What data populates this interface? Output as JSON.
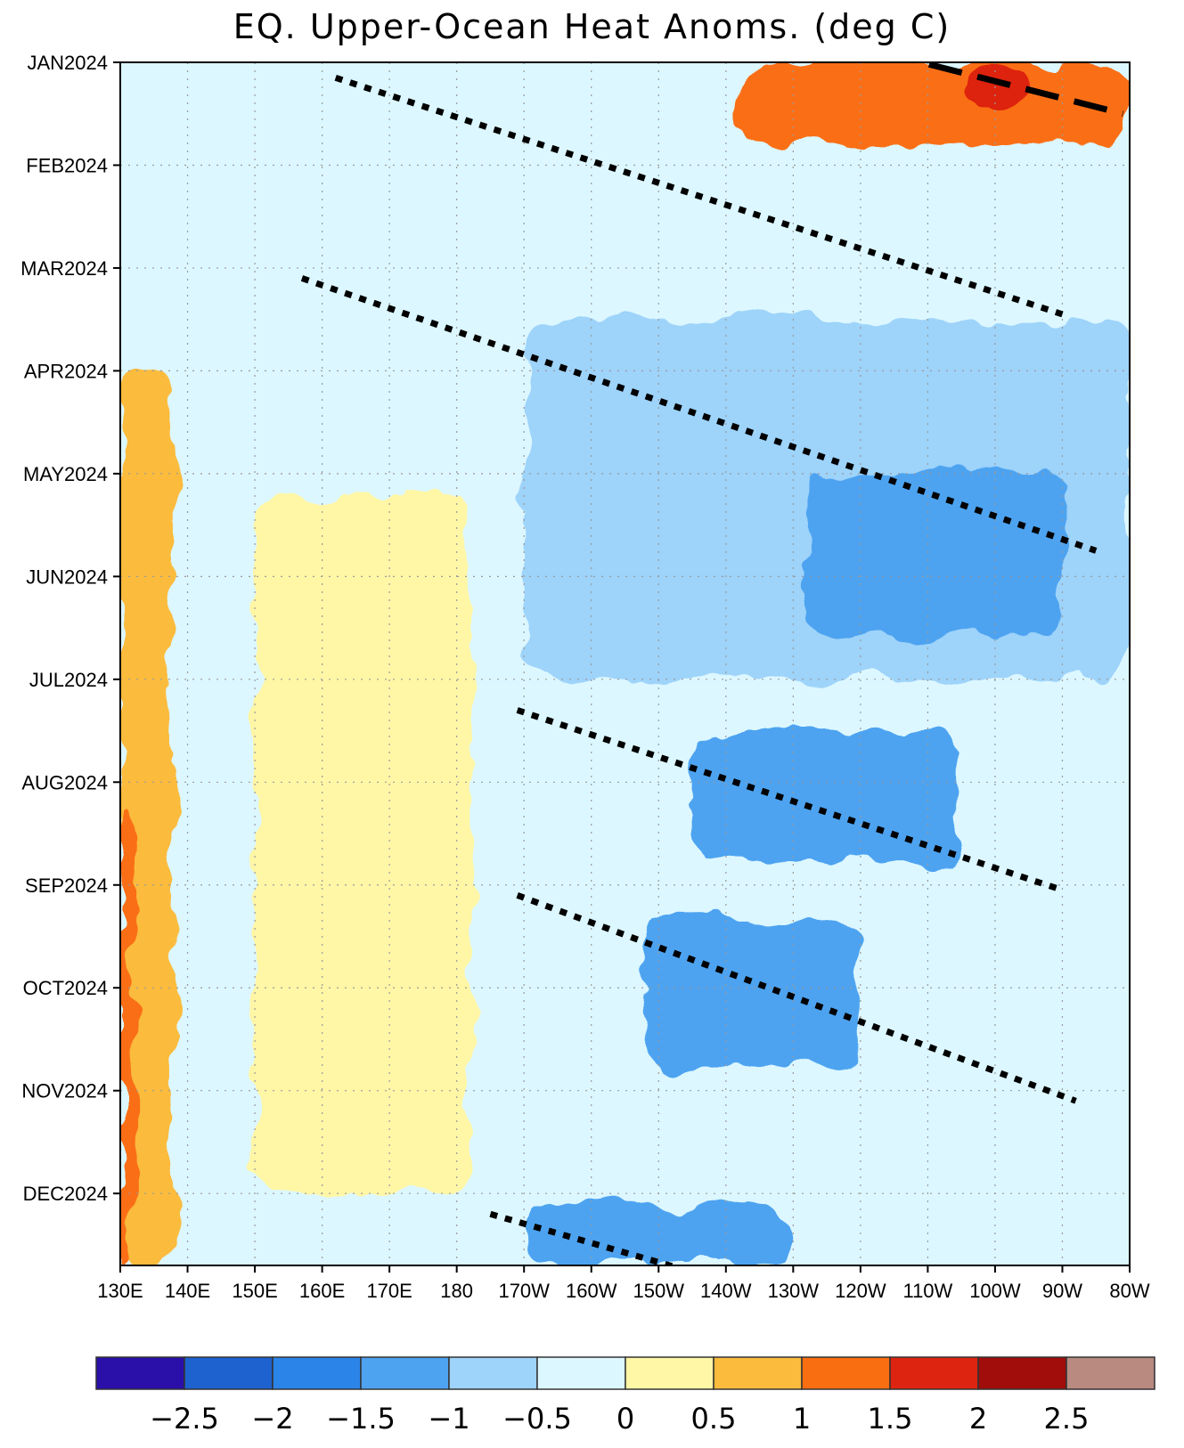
{
  "chart_data": {
    "type": "heatmap",
    "title": "EQ. Upper-Ocean Heat Anoms. (deg C)",
    "x_tick_labels": [
      "130E",
      "140E",
      "150E",
      "160E",
      "170E",
      "180",
      "170W",
      "160W",
      "150W",
      "140W",
      "130W",
      "120W",
      "110W",
      "100W",
      "90W",
      "80W"
    ],
    "x_longitudes_east": [
      130,
      140,
      150,
      160,
      170,
      180,
      190,
      200,
      210,
      220,
      230,
      240,
      250,
      260,
      270,
      280
    ],
    "y_tick_labels": [
      "JAN2024",
      "FEB2024",
      "MAR2024",
      "APR2024",
      "MAY2024",
      "JUN2024",
      "JUL2024",
      "AUG2024",
      "SEP2024",
      "OCT2024",
      "NOV2024",
      "DEC2024"
    ],
    "y_month_index": [
      0,
      1,
      2,
      3,
      4,
      5,
      6,
      7,
      8,
      9,
      10,
      11
    ],
    "y_range_months": [
      0,
      11.7
    ],
    "x_range_east": [
      130,
      280
    ],
    "grid": true,
    "colorbar": {
      "labels": [
        "-2.5",
        "-2",
        "-1.5",
        "-1",
        "-0.5",
        "0",
        "0.5",
        "1",
        "1.5",
        "2",
        "2.5"
      ],
      "colors": [
        "#2a0fa8",
        "#1d62cf",
        "#2b84e8",
        "#4ea3f0",
        "#9ed3fa",
        "#dcf7ff",
        "#fff6a6",
        "#fbbb3c",
        "#fa6e12",
        "#dd2410",
        "#a00d0a",
        "#b88a80"
      ]
    },
    "contour_levels": [
      -2.5,
      -2,
      -1.5,
      -1,
      -0.5,
      0,
      0.5,
      1,
      1.5,
      2,
      2.5
    ],
    "anomaly_regions": [
      {
        "name": "west-warm-strip",
        "value": 0.75,
        "lon": [
          130,
          138
        ],
        "months": [
          3,
          11.7
        ]
      },
      {
        "name": "west-warm-edge",
        "value": 1.25,
        "lon": [
          130,
          132
        ],
        "months": [
          7.3,
          11.7
        ]
      },
      {
        "name": "dateline-warm",
        "value": 0.25,
        "lon": [
          150,
          182
        ],
        "months": [
          4.2,
          11
        ]
      },
      {
        "name": "east-warm-jan",
        "value": 1.25,
        "lon": [
          222,
          280
        ],
        "months": [
          0,
          0.8
        ]
      },
      {
        "name": "east-hot-jan",
        "value": 1.75,
        "lon": [
          255,
          265
        ],
        "months": [
          0.05,
          0.45
        ]
      },
      {
        "name": "central-cool-apr-jun",
        "value": -0.75,
        "lon": [
          190,
          280
        ],
        "months": [
          2.5,
          6
        ]
      },
      {
        "name": "east-cold-may",
        "value": -1.25,
        "lon": [
          232,
          270
        ],
        "months": [
          4,
          5.6
        ]
      },
      {
        "name": "central-cool-aug",
        "value": -1.25,
        "lon": [
          215,
          255
        ],
        "months": [
          6.5,
          7.8
        ]
      },
      {
        "name": "central-cold-oct",
        "value": -1.25,
        "lon": [
          208,
          240
        ],
        "months": [
          8.3,
          9.8
        ]
      },
      {
        "name": "cold-dec",
        "value": -1.25,
        "lon": [
          190,
          230
        ],
        "months": [
          11.1,
          11.7
        ]
      }
    ],
    "propagation_lines": [
      {
        "style": "dotted",
        "from": {
          "lon": 162,
          "month": 0.15
        },
        "to": {
          "lon": 270,
          "month": 2.45
        }
      },
      {
        "style": "dotted",
        "from": {
          "lon": 157,
          "month": 2.1
        },
        "to": {
          "lon": 275,
          "month": 4.75
        }
      },
      {
        "style": "dotted",
        "from": {
          "lon": 189,
          "month": 6.3
        },
        "to": {
          "lon": 270,
          "month": 8.05
        }
      },
      {
        "style": "dotted",
        "from": {
          "lon": 189,
          "month": 8.1
        },
        "to": {
          "lon": 272,
          "month": 10.1
        }
      },
      {
        "style": "dotted",
        "from": {
          "lon": 185,
          "month": 11.2
        },
        "to": {
          "lon": 217,
          "month": 11.8
        }
      },
      {
        "style": "dashed",
        "from": {
          "lon": 243,
          "month": -0.1
        },
        "to": {
          "lon": 279,
          "month": 0.5
        }
      }
    ]
  }
}
